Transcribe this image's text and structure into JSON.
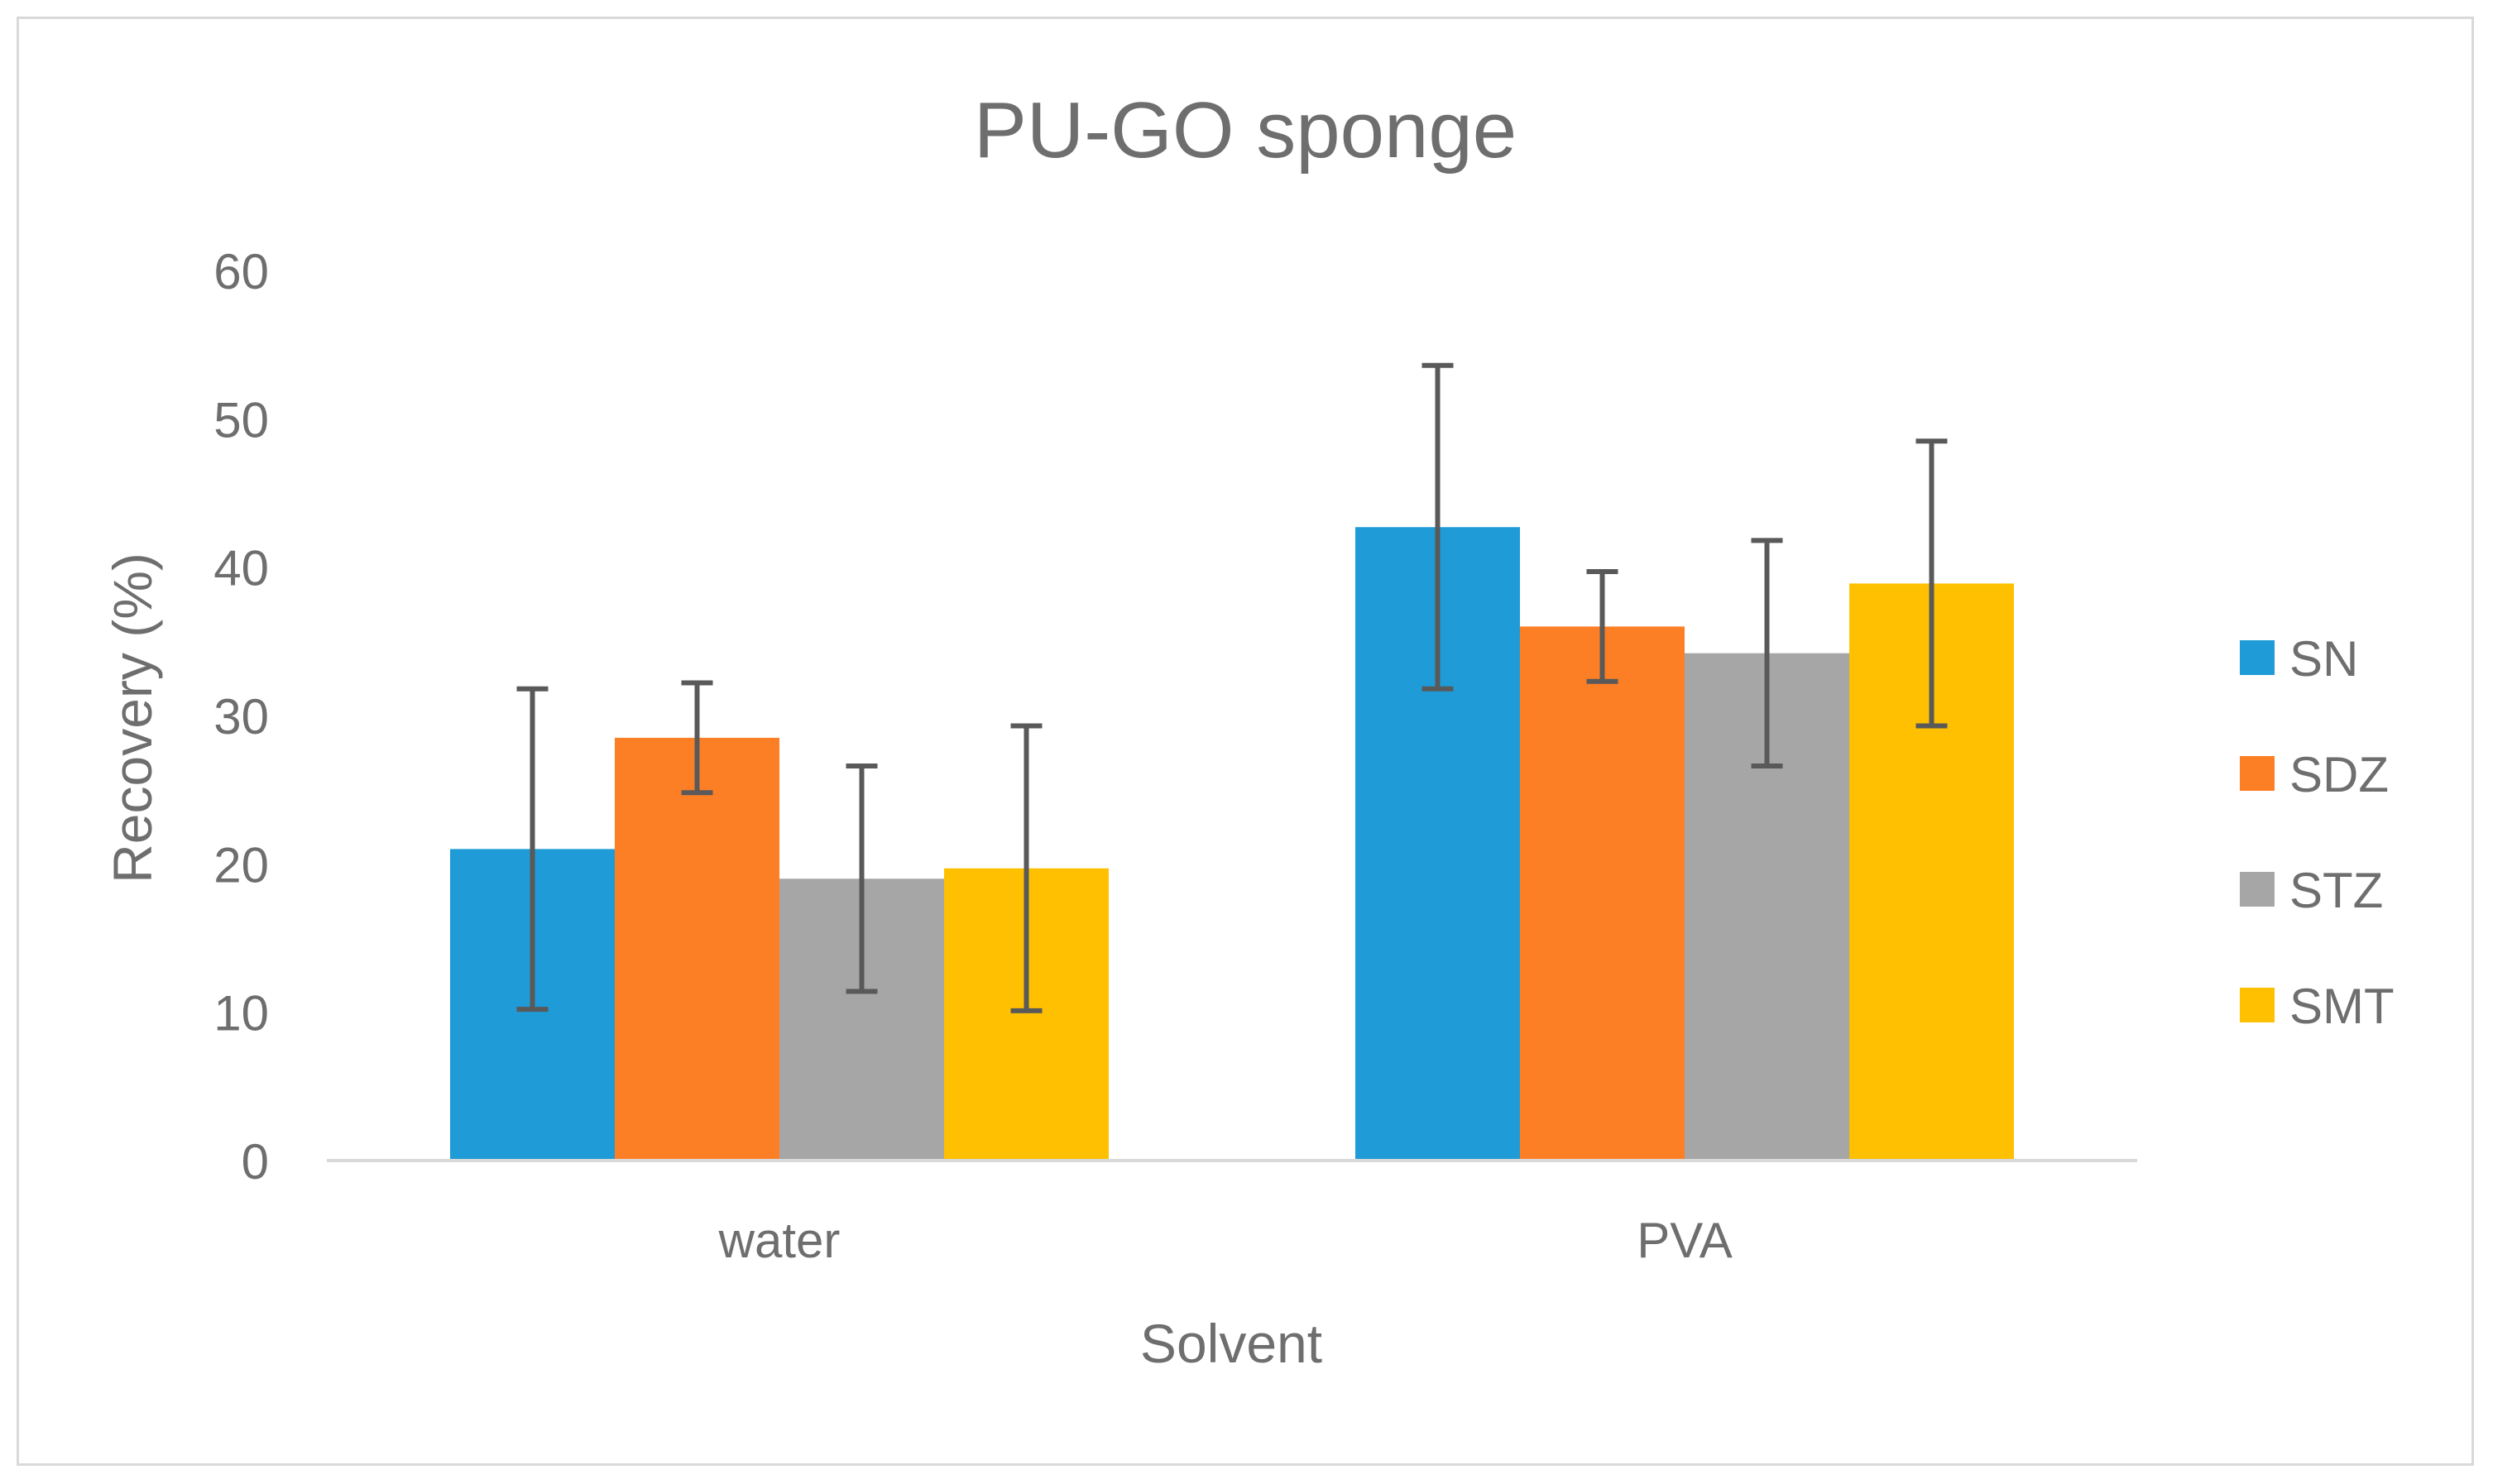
{
  "chart_data": {
    "type": "bar",
    "title": "PU-GO sponge",
    "xlabel": "Solvent",
    "ylabel": "Recovery (%)",
    "categories": [
      "water",
      "PVA"
    ],
    "ylim": [
      0,
      60
    ],
    "yticks": [
      0,
      10,
      20,
      30,
      40,
      50,
      60
    ],
    "grid": false,
    "legend_position": "right",
    "series": [
      {
        "name": "SN",
        "color": "#1f9bd7",
        "values": [
          21.0,
          42.7
        ],
        "errors": [
          10.8,
          10.9
        ]
      },
      {
        "name": "SDZ",
        "color": "#fd7f25",
        "values": [
          28.5,
          36.0
        ],
        "errors": [
          3.7,
          3.7
        ]
      },
      {
        "name": "STZ",
        "color": "#a6a6a6",
        "values": [
          19.0,
          34.2
        ],
        "errors": [
          7.6,
          7.6
        ]
      },
      {
        "name": "SMT",
        "color": "#fec000",
        "values": [
          19.7,
          38.9
        ],
        "errors": [
          9.6,
          9.6
        ]
      }
    ]
  }
}
